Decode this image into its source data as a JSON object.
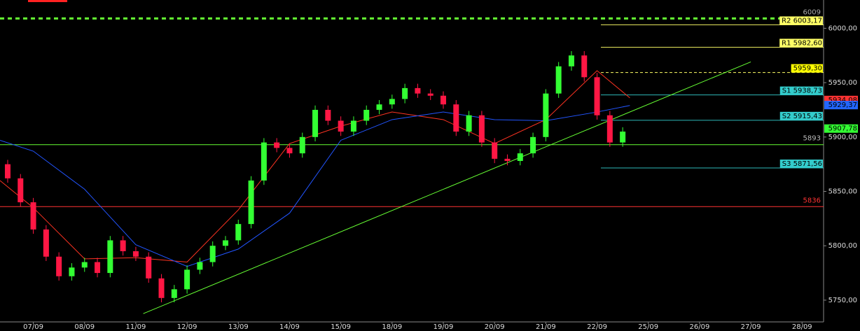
{
  "chart_data": {
    "type": "candlestick",
    "x": [
      -0.5,
      -0.25,
      0,
      0.25,
      0.5,
      0.75,
      1,
      1.25,
      1.5,
      1.75,
      2,
      2.25,
      2.5,
      2.75,
      3,
      3.25,
      3.5,
      3.75,
      4,
      4.25,
      4.5,
      4.75,
      5,
      5.25,
      5.5,
      5.75,
      6,
      6.25,
      6.5,
      6.75,
      7,
      7.25,
      7.5,
      7.75,
      8,
      8.25,
      8.5,
      8.75,
      9,
      9.25,
      9.5,
      9.75,
      10,
      10.25,
      10.5,
      10.75,
      11,
      11.25,
      11.5
    ],
    "open": [
      5875,
      5862,
      5840,
      5815,
      5790,
      5772,
      5780,
      5785,
      5775,
      5805,
      5795,
      5790,
      5770,
      5752,
      5760,
      5778,
      5785,
      5800,
      5805,
      5820,
      5860,
      5895,
      5890,
      5885,
      5900,
      5925,
      5915,
      5905,
      5915,
      5925,
      5930,
      5935,
      5945,
      5940,
      5938,
      5930,
      5905,
      5920,
      5895,
      5880,
      5878,
      5885,
      5900,
      5940,
      5965,
      5975,
      5955,
      5920,
      5895
    ],
    "high": [
      5879,
      5866,
      5844,
      5819,
      5794,
      5784,
      5789,
      5789,
      5809,
      5809,
      5799,
      5794,
      5774,
      5764,
      5782,
      5789,
      5804,
      5809,
      5824,
      5864,
      5899,
      5899,
      5894,
      5904,
      5929,
      5929,
      5919,
      5919,
      5929,
      5934,
      5939,
      5949,
      5949,
      5944,
      5942,
      5934,
      5924,
      5924,
      5899,
      5884,
      5889,
      5904,
      5944,
      5969,
      5979,
      5979,
      5959,
      5924,
      5909
    ],
    "low": [
      5858,
      5836,
      5811,
      5786,
      5768,
      5768,
      5776,
      5771,
      5771,
      5791,
      5786,
      5766,
      5748,
      5748,
      5756,
      5774,
      5781,
      5796,
      5801,
      5816,
      5856,
      5886,
      5881,
      5881,
      5896,
      5911,
      5901,
      5901,
      5911,
      5921,
      5926,
      5931,
      5936,
      5934,
      5926,
      5901,
      5901,
      5891,
      5876,
      5874,
      5874,
      5881,
      5896,
      5936,
      5961,
      5951,
      5916,
      5891,
      5891
    ],
    "close": [
      5862,
      5840,
      5815,
      5790,
      5772,
      5780,
      5785,
      5775,
      5805,
      5795,
      5790,
      5770,
      5752,
      5760,
      5778,
      5785,
      5800,
      5805,
      5820,
      5860,
      5895,
      5890,
      5885,
      5900,
      5925,
      5915,
      5905,
      5915,
      5925,
      5930,
      5935,
      5945,
      5940,
      5938,
      5930,
      5905,
      5920,
      5895,
      5880,
      5878,
      5885,
      5900,
      5940,
      5965,
      5975,
      5955,
      5920,
      5895,
      5905
    ],
    "up_color": "#33ff33",
    "down_color": "#ff1744",
    "xlim": [
      -0.65,
      15.42
    ],
    "xticks": [
      {
        "value": 0,
        "label": "07/09"
      },
      {
        "value": 1,
        "label": "08/09"
      },
      {
        "value": 2,
        "label": "11/09"
      },
      {
        "value": 3,
        "label": "12/09"
      },
      {
        "value": 4,
        "label": "13/09"
      },
      {
        "value": 5,
        "label": "14/09"
      },
      {
        "value": 6,
        "label": "15/09"
      },
      {
        "value": 7,
        "label": "18/09"
      },
      {
        "value": 8,
        "label": "19/09"
      },
      {
        "value": 9,
        "label": "20/09"
      },
      {
        "value": 10,
        "label": "21/09"
      },
      {
        "value": 11,
        "label": "22/09"
      },
      {
        "value": 12,
        "label": "25/09"
      },
      {
        "value": 13,
        "label": "26/09"
      },
      {
        "value": 14,
        "label": "27/09"
      },
      {
        "value": 15,
        "label": "28/09"
      }
    ],
    "ylim": [
      5730,
      6026
    ],
    "yticks": [
      {
        "value": 5750,
        "label": "5750,00"
      },
      {
        "value": 5800,
        "label": "5800,00"
      },
      {
        "value": 5850,
        "label": "5850,00"
      },
      {
        "value": 5900,
        "label": "5900,00"
      },
      {
        "value": 5950,
        "label": "5950,00"
      },
      {
        "value": 6000,
        "label": "6000,00"
      }
    ],
    "lines": [
      {
        "color": "#ff3322",
        "x": [
          -0.65,
          0,
          1,
          2,
          3,
          4,
          5,
          6,
          7,
          8,
          9,
          10,
          11,
          11.64
        ],
        "values": [
          5860,
          5835,
          5788,
          5789,
          5785,
          5833,
          5894,
          5910,
          5923,
          5916,
          5894,
          5916,
          5961,
          5936
        ]
      },
      {
        "color": "#2255ff",
        "x": [
          -0.65,
          0,
          1,
          2,
          3,
          4,
          5,
          6,
          7,
          8,
          9,
          10,
          11,
          11.64
        ],
        "values": [
          5897,
          5887,
          5852,
          5801,
          5781,
          5797,
          5830,
          5897,
          5916,
          5923,
          5916,
          5915,
          5923,
          5929
        ]
      },
      {
        "color": "#66ff33",
        "x": [
          2.145,
          14.0
        ],
        "values": [
          5737.6,
          5969.1
        ]
      }
    ],
    "hlines": [
      {
        "value": 6009,
        "color": "#66ff33",
        "dashed": true
      },
      {
        "value": 5893,
        "color": "#66ff33",
        "dashed": false
      },
      {
        "value": 5836,
        "color": "#ff3333",
        "dashed": false
      }
    ],
    "pivots": [
      {
        "label": "R2 6003,17",
        "value": 6003.17,
        "color": "#ffff66"
      },
      {
        "label": "R1 5982,60",
        "value": 5982.6,
        "color": "#ffff66"
      },
      {
        "label": "5959,30",
        "value": 5959.3,
        "color": "#ffff66"
      },
      {
        "label": "S1 5938,73",
        "value": 5938.73,
        "color": "#33cccc"
      },
      {
        "label": "S2 5915,43",
        "value": 5915.43,
        "color": "#33cccc"
      },
      {
        "label": "S3 5871,56",
        "value": 5871.56,
        "color": "#33cccc"
      }
    ],
    "price_tags": [
      {
        "label": "5934,08",
        "value": 5934.08,
        "color": "#ff3333"
      },
      {
        "label": "5929,37",
        "value": 5929.37,
        "color": "#2266ff"
      },
      {
        "label": "5907,78",
        "value": 5907.78,
        "color": "#33ff33"
      }
    ]
  }
}
